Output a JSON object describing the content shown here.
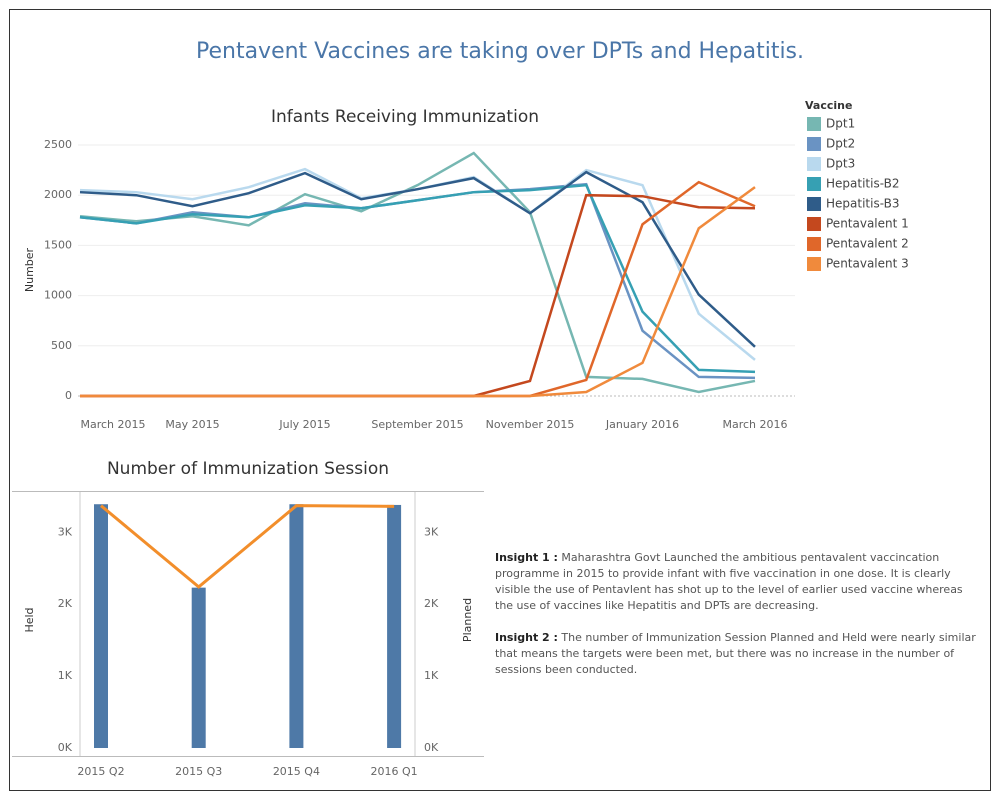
{
  "title": "Pentavent Vaccines are taking over DPTs and Hepatitis.",
  "chart_data": [
    {
      "type": "line",
      "title": "Infants Receiving Immunization",
      "ylabel": "Number",
      "legend_title": "Vaccine",
      "legend": "right",
      "grid": true,
      "categories": [
        "March 2015",
        null,
        "May 2015",
        null,
        "July 2015",
        null,
        "September 2015",
        null,
        "November 2015",
        null,
        "January 2016",
        null,
        "March 2016"
      ],
      "ylim": [
        0,
        2500
      ],
      "yticks": [
        0,
        500,
        1000,
        1500,
        2000,
        2500
      ],
      "series": [
        {
          "name": "Dpt1",
          "color": "#76b7b2",
          "values": [
            1790,
            1740,
            1790,
            1700,
            2010,
            1840,
            2100,
            2420,
            1830,
            190,
            170,
            40,
            150
          ]
        },
        {
          "name": "Dpt2",
          "color": "#6a93c3",
          "values": [
            1780,
            1720,
            1830,
            1780,
            1920,
            1870,
            1950,
            2030,
            2060,
            2110,
            650,
            190,
            180
          ]
        },
        {
          "name": "Dpt3",
          "color": "#b9d9ee",
          "values": [
            2050,
            2030,
            1960,
            2080,
            2260,
            1970,
            2060,
            2180,
            1820,
            2250,
            2100,
            820,
            360
          ]
        },
        {
          "name": "Hepatitis-B2",
          "color": "#36a0b3",
          "values": [
            1780,
            1720,
            1810,
            1780,
            1900,
            1870,
            1950,
            2030,
            2050,
            2100,
            840,
            260,
            240
          ]
        },
        {
          "name": "Hepatitis-B3",
          "color": "#2f5c89",
          "values": [
            2030,
            2000,
            1890,
            2020,
            2220,
            1960,
            2060,
            2170,
            1820,
            2230,
            1930,
            1010,
            490
          ]
        },
        {
          "name": "Pentavalent 1",
          "color": "#c4481e",
          "values": [
            0,
            0,
            0,
            0,
            0,
            0,
            0,
            0,
            150,
            2000,
            1990,
            1880,
            1870
          ]
        },
        {
          "name": "Pentavalent 2",
          "color": "#e0672a",
          "values": [
            0,
            0,
            0,
            0,
            0,
            0,
            0,
            0,
            0,
            160,
            1710,
            2130,
            1890
          ]
        },
        {
          "name": "Pentavalent 3",
          "color": "#f08a3c",
          "values": [
            0,
            0,
            0,
            0,
            0,
            0,
            0,
            0,
            0,
            40,
            330,
            1670,
            2080
          ]
        }
      ]
    },
    {
      "type": "bar",
      "title": "Number of Immunization Session",
      "categories": [
        "2015 Q2",
        "2015 Q3",
        "2015 Q4",
        "2016 Q1"
      ],
      "ylim": [
        0,
        3560
      ],
      "yticks": [
        {
          "value": 0,
          "label": "0K"
        },
        {
          "value": 1000,
          "label": "1K"
        },
        {
          "value": 2000,
          "label": "2K"
        },
        {
          "value": 3000,
          "label": "3K"
        }
      ],
      "y2lim": [
        0,
        3560
      ],
      "y2ticks": [
        {
          "value": 0,
          "label": "0K"
        },
        {
          "value": 1000,
          "label": "1K"
        },
        {
          "value": 2000,
          "label": "2K"
        },
        {
          "value": 3000,
          "label": "3K"
        }
      ],
      "series": [
        {
          "name": "Held",
          "color": "#4e79a7",
          "values": [
            3390,
            2230,
            3390,
            3380
          ]
        },
        {
          "name": "Planned",
          "color": "#f28e2b",
          "axis": "y2",
          "mark": "line",
          "values": [
            3370,
            2240,
            3370,
            3360
          ]
        }
      ]
    }
  ],
  "insights": [
    {
      "label": "Insight 1 :",
      "text": "Maharashtra Govt Launched the ambitious pentavalent vaccincation programme in 2015 to provide infant with five vaccination in one dose. It is clearly visible the use of Pentavlent has shot up to the level of earlier used vaccine whereas the use of vaccines like Hepatitis and DPTs are decreasing."
    },
    {
      "label": "Insight 2 :",
      "text": "The number of Immunization Session Planned and Held were nearly similar that means the targets were been met, but there was no increase in the number of sessions been conducted."
    }
  ]
}
